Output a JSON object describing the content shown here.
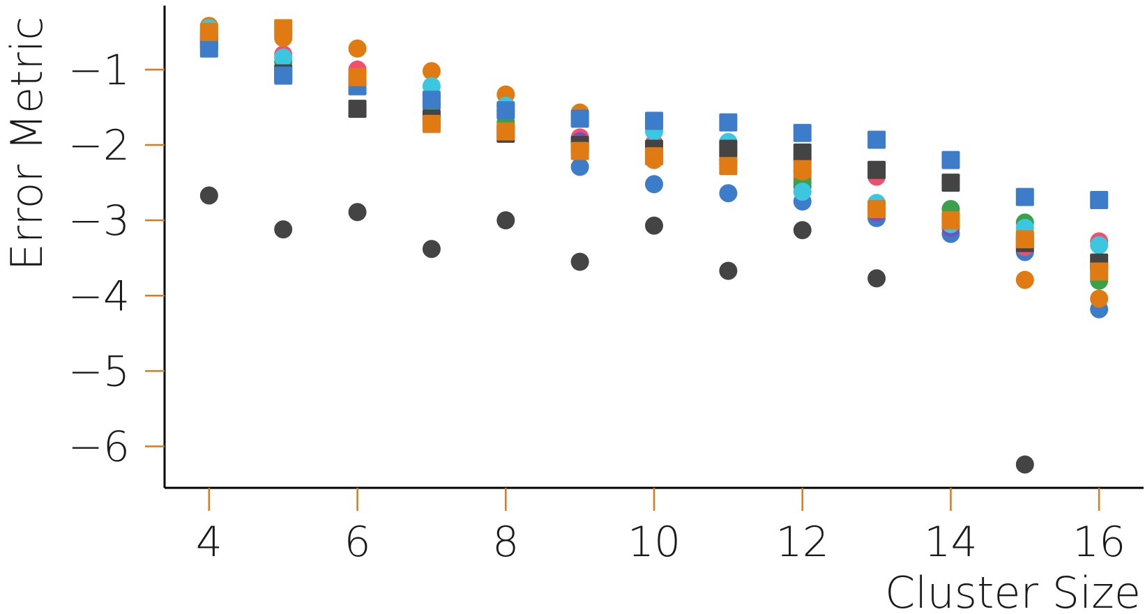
{
  "chart_data": {
    "type": "scatter",
    "xlabel": "Cluster Size",
    "ylabel": "Error Metric",
    "xlim": [
      3.4,
      16.6
    ],
    "ylim": [
      -6.55,
      -0.15
    ],
    "x_ticks": [
      4,
      6,
      8,
      10,
      12,
      14,
      16
    ],
    "x_tick_labels": [
      "4",
      "6",
      "8",
      "10",
      "12",
      "14",
      "16"
    ],
    "y_ticks": [
      -1,
      -2,
      -3,
      -4,
      -5,
      -6
    ],
    "y_tick_labels": [
      "−1",
      "−2",
      "−3",
      "−4",
      "−5",
      "−6"
    ],
    "grid": false,
    "legend": "none",
    "x": [
      4,
      5,
      6,
      7,
      8,
      9,
      10,
      11,
      12,
      13,
      14,
      15,
      16
    ],
    "series": [
      {
        "color": "#444444",
        "marker": "circle",
        "values": [
          -2.67,
          -3.12,
          -2.89,
          -3.38,
          -3.0,
          -3.55,
          -3.07,
          -3.67,
          -3.13,
          -3.77,
          null,
          -6.24,
          null
        ]
      },
      {
        "color": "#3d7cc9",
        "marker": "circle",
        "values": [
          -0.6,
          -1.05,
          -1.2,
          -1.45,
          -1.55,
          -2.29,
          -2.52,
          -2.64,
          -2.75,
          -2.97,
          -3.18,
          -3.42,
          -4.18
        ]
      },
      {
        "color": "#f24f6e",
        "marker": "circle",
        "values": [
          -0.5,
          -0.8,
          -1.0,
          -1.35,
          -1.48,
          -1.9,
          -1.98,
          -2.1,
          -2.45,
          -2.42,
          -3.0,
          -3.35,
          -3.28
        ]
      },
      {
        "color": "#7b4fb8",
        "marker": "circle",
        "values": [
          -0.6,
          -0.98,
          -1.12,
          -1.5,
          -1.6,
          -1.95,
          -2.05,
          -2.2,
          -2.55,
          -2.9,
          -3.1,
          -3.3,
          -3.6
        ]
      },
      {
        "color": "#3aa04a",
        "marker": "circle",
        "values": [
          -0.55,
          -0.9,
          -1.15,
          -1.6,
          -1.7,
          -2.0,
          -2.1,
          -2.25,
          -2.5,
          -2.85,
          -2.85,
          -3.03,
          -3.8
        ]
      },
      {
        "color": "#e07b14",
        "marker": "circle",
        "values": [
          -0.42,
          -0.58,
          -0.72,
          -1.02,
          -1.33,
          -1.57,
          -2.2,
          -2.2,
          -2.35,
          -2.8,
          -3.0,
          -3.79,
          -4.04
        ]
      },
      {
        "color": "#3cc6e0",
        "marker": "circle",
        "values": [
          -0.45,
          -0.84,
          -1.2,
          -1.22,
          -1.48,
          -1.65,
          -1.82,
          -1.96,
          -2.62,
          -2.77,
          -3.05,
          -3.1,
          -3.33
        ]
      },
      {
        "color": "#444444",
        "marker": "square",
        "values": [
          -0.62,
          -1.05,
          -1.52,
          -1.65,
          -1.85,
          -2.0,
          -2.05,
          -2.05,
          -2.1,
          -2.33,
          -2.5,
          -3.3,
          -3.56
        ]
      },
      {
        "color": "#3d7cc9",
        "marker": "square",
        "values": [
          -0.72,
          -1.08,
          -1.22,
          -1.4,
          -1.54,
          -1.65,
          -1.68,
          -1.7,
          -1.84,
          -1.93,
          -2.2,
          -2.69,
          -2.73
        ]
      },
      {
        "color": "#e07b14",
        "marker": "square",
        "values": [
          -0.5,
          -0.45,
          -1.1,
          -1.72,
          -1.82,
          -2.08,
          -2.15,
          -2.28,
          -2.32,
          -2.85,
          -3.0,
          -3.25,
          -3.68
        ]
      }
    ]
  }
}
